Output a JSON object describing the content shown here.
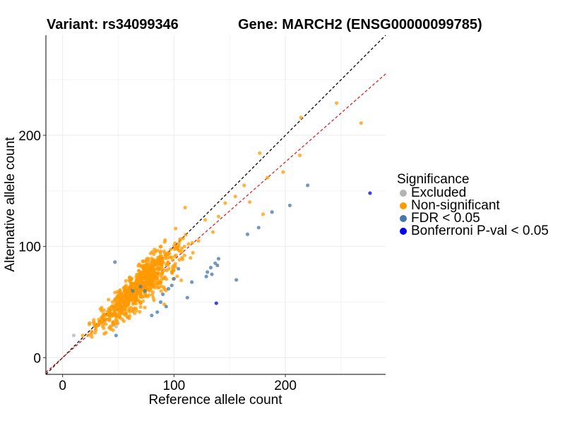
{
  "header": {
    "variant": "Variant: rs34099346",
    "gene": "Gene: MARCH2 (ENSG00000099785)"
  },
  "chart_data": {
    "type": "scatter",
    "xlabel": "Reference allele count",
    "ylabel": "Alternative allele count",
    "xlim": [
      -15,
      290
    ],
    "ylim": [
      -15,
      290
    ],
    "xticks": [
      0,
      100,
      200
    ],
    "yticks": [
      0,
      100,
      200
    ],
    "grid": true,
    "reference_lines": [
      {
        "name": "identity",
        "slope": 1,
        "intercept": 0,
        "color": "#000000",
        "style": "dashed"
      },
      {
        "name": "ratio",
        "slope": 0.88,
        "intercept": 0,
        "color": "#e31a1c",
        "style": "dashed"
      }
    ],
    "legend": {
      "title": "Significance",
      "position": "right",
      "entries": [
        {
          "label": "Excluded",
          "color": "#b3b3b3"
        },
        {
          "label": "Non-significant",
          "color": "#ff9900"
        },
        {
          "label": "FDR < 0.05",
          "color": "#4477aa"
        },
        {
          "label": "Bonferroni P-val < 0.05",
          "color": "#0000ee"
        }
      ]
    },
    "series": [
      {
        "name": "Excluded",
        "color": "#b3b3b3",
        "points": [
          [
            10,
            20
          ],
          [
            48,
            28
          ]
        ]
      },
      {
        "name": "Non-significant",
        "color": "#ff9900",
        "generated_count": 820,
        "points": [
          [
            214,
            216
          ],
          [
            246,
            229
          ],
          [
            268,
            211
          ],
          [
            213,
            182
          ],
          [
            177,
            184
          ],
          [
            168,
            140
          ],
          [
            198,
            167
          ],
          [
            184,
            162
          ],
          [
            163,
            155
          ],
          [
            180,
            129
          ],
          [
            155,
            145
          ],
          [
            146,
            139
          ],
          [
            140,
            127
          ],
          [
            128,
            124
          ],
          [
            135,
            113
          ],
          [
            122,
            105
          ],
          [
            110,
            135
          ],
          [
            18,
            20
          ],
          [
            24,
            30
          ],
          [
            28,
            34
          ],
          [
            35,
            45
          ]
        ]
      },
      {
        "name": "FDR < 0.05",
        "color": "#4477aa",
        "points": [
          [
            220,
            155
          ],
          [
            204,
            137
          ],
          [
            188,
            131
          ],
          [
            176,
            117
          ],
          [
            166,
            111
          ],
          [
            156,
            70
          ],
          [
            140,
            89
          ],
          [
            139,
            83
          ],
          [
            133,
            81
          ],
          [
            137,
            85
          ],
          [
            130,
            77
          ],
          [
            134,
            75
          ],
          [
            129,
            73
          ],
          [
            104,
            80
          ],
          [
            100,
            71
          ],
          [
            98,
            65
          ],
          [
            95,
            62
          ],
          [
            90,
            57
          ],
          [
            116,
            68
          ],
          [
            112,
            54
          ],
          [
            93,
            46
          ],
          [
            85,
            41
          ],
          [
            80,
            38
          ],
          [
            88,
            50
          ],
          [
            47,
            86
          ],
          [
            48,
            20
          ],
          [
            63,
            60
          ],
          [
            70,
            64
          ],
          [
            74,
            60
          ]
        ]
      },
      {
        "name": "Bonferroni P-val < 0.05",
        "color": "#0000ee",
        "points": [
          [
            276,
            148
          ],
          [
            138,
            49
          ]
        ]
      }
    ]
  }
}
